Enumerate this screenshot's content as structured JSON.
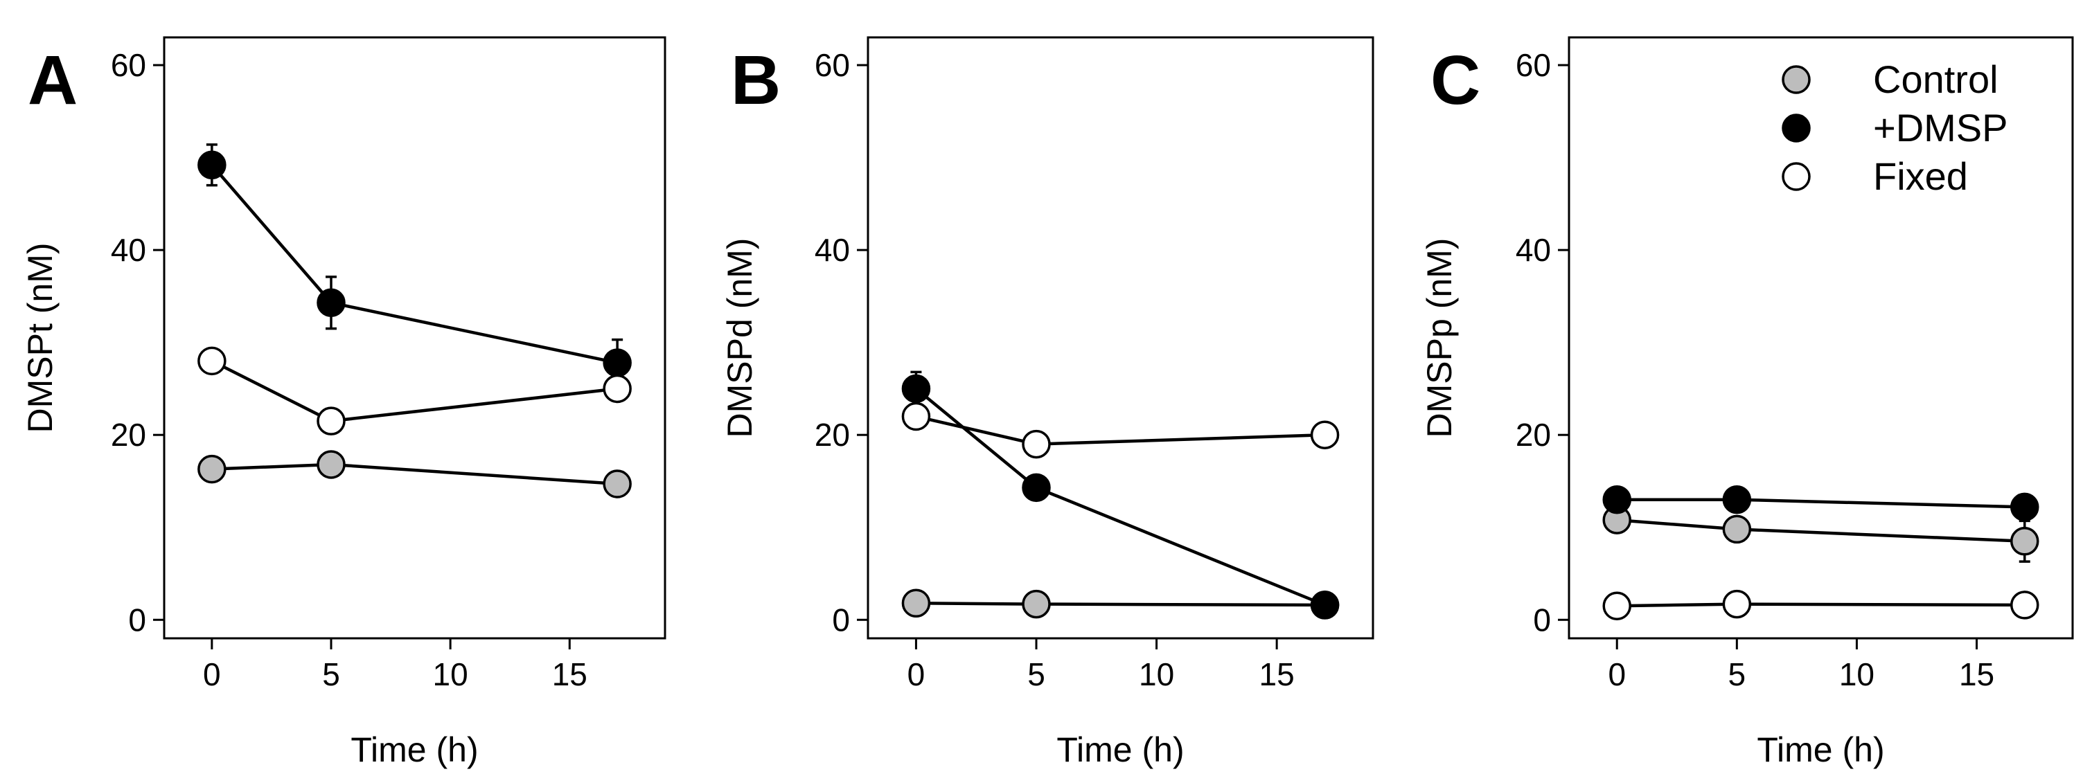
{
  "legend": {
    "items": [
      {
        "label": "Control",
        "color": "#bdbdbd"
      },
      {
        "label": "+DMSP",
        "color": "#000000"
      },
      {
        "label": "Fixed",
        "color": "#ffffff"
      }
    ],
    "placement": "top-right of panel C"
  },
  "chart_data": [
    {
      "type": "line",
      "panel": "A",
      "xlabel": "Time (h)",
      "ylabel": "DMSPt (nM)",
      "xlim": [
        -2,
        19
      ],
      "ylim": [
        -2,
        63
      ],
      "xticks": [
        0,
        5,
        10,
        15
      ],
      "yticks": [
        0,
        20,
        40,
        60
      ],
      "x": [
        0,
        5,
        17
      ],
      "series": [
        {
          "name": "Control",
          "color": "#bdbdbd",
          "values": [
            16.3,
            16.8,
            14.7
          ],
          "errors": [
            0.8,
            0.8,
            0.8
          ]
        },
        {
          "name": "+DMSP",
          "color": "#000000",
          "values": [
            49.2,
            34.3,
            27.8
          ],
          "errors": [
            2.2,
            2.8,
            2.5
          ]
        },
        {
          "name": "Fixed",
          "color": "#ffffff",
          "values": [
            28.0,
            21.5,
            25.0
          ],
          "errors": [
            0.5,
            0.5,
            0.5
          ]
        }
      ]
    },
    {
      "type": "line",
      "panel": "B",
      "xlabel": "Time (h)",
      "ylabel": "DMSPd (nM)",
      "xlim": [
        -2,
        19
      ],
      "ylim": [
        -2,
        63
      ],
      "xticks": [
        0,
        5,
        10,
        15
      ],
      "yticks": [
        0,
        20,
        40,
        60
      ],
      "x": [
        0,
        5,
        17
      ],
      "series": [
        {
          "name": "Control",
          "color": "#bdbdbd",
          "values": [
            1.8,
            1.7,
            1.6
          ],
          "errors": [
            0.3,
            0.3,
            0.3
          ]
        },
        {
          "name": "+DMSP",
          "color": "#000000",
          "values": [
            25.0,
            14.3,
            1.6
          ],
          "errors": [
            1.8,
            0.8,
            0.5
          ]
        },
        {
          "name": "Fixed",
          "color": "#ffffff",
          "values": [
            22.0,
            19.0,
            20.0
          ],
          "errors": [
            0.5,
            0.4,
            0.4
          ]
        }
      ]
    },
    {
      "type": "line",
      "panel": "C",
      "xlabel": "Time (h)",
      "ylabel": "DMSPp (nM)",
      "xlim": [
        -2,
        19
      ],
      "ylim": [
        -2,
        63
      ],
      "xticks": [
        0,
        5,
        10,
        15
      ],
      "yticks": [
        0,
        20,
        40,
        60
      ],
      "x": [
        0,
        5,
        17
      ],
      "series": [
        {
          "name": "Control",
          "color": "#bdbdbd",
          "values": [
            10.8,
            9.8,
            8.5
          ],
          "errors": [
            0.6,
            0.6,
            2.2
          ]
        },
        {
          "name": "+DMSP",
          "color": "#000000",
          "values": [
            13.0,
            13.0,
            12.2
          ],
          "errors": [
            0.5,
            0.5,
            1.0
          ]
        },
        {
          "name": "Fixed",
          "color": "#ffffff",
          "values": [
            1.5,
            1.7,
            1.6
          ],
          "errors": [
            0.2,
            0.2,
            0.2
          ]
        }
      ]
    }
  ]
}
